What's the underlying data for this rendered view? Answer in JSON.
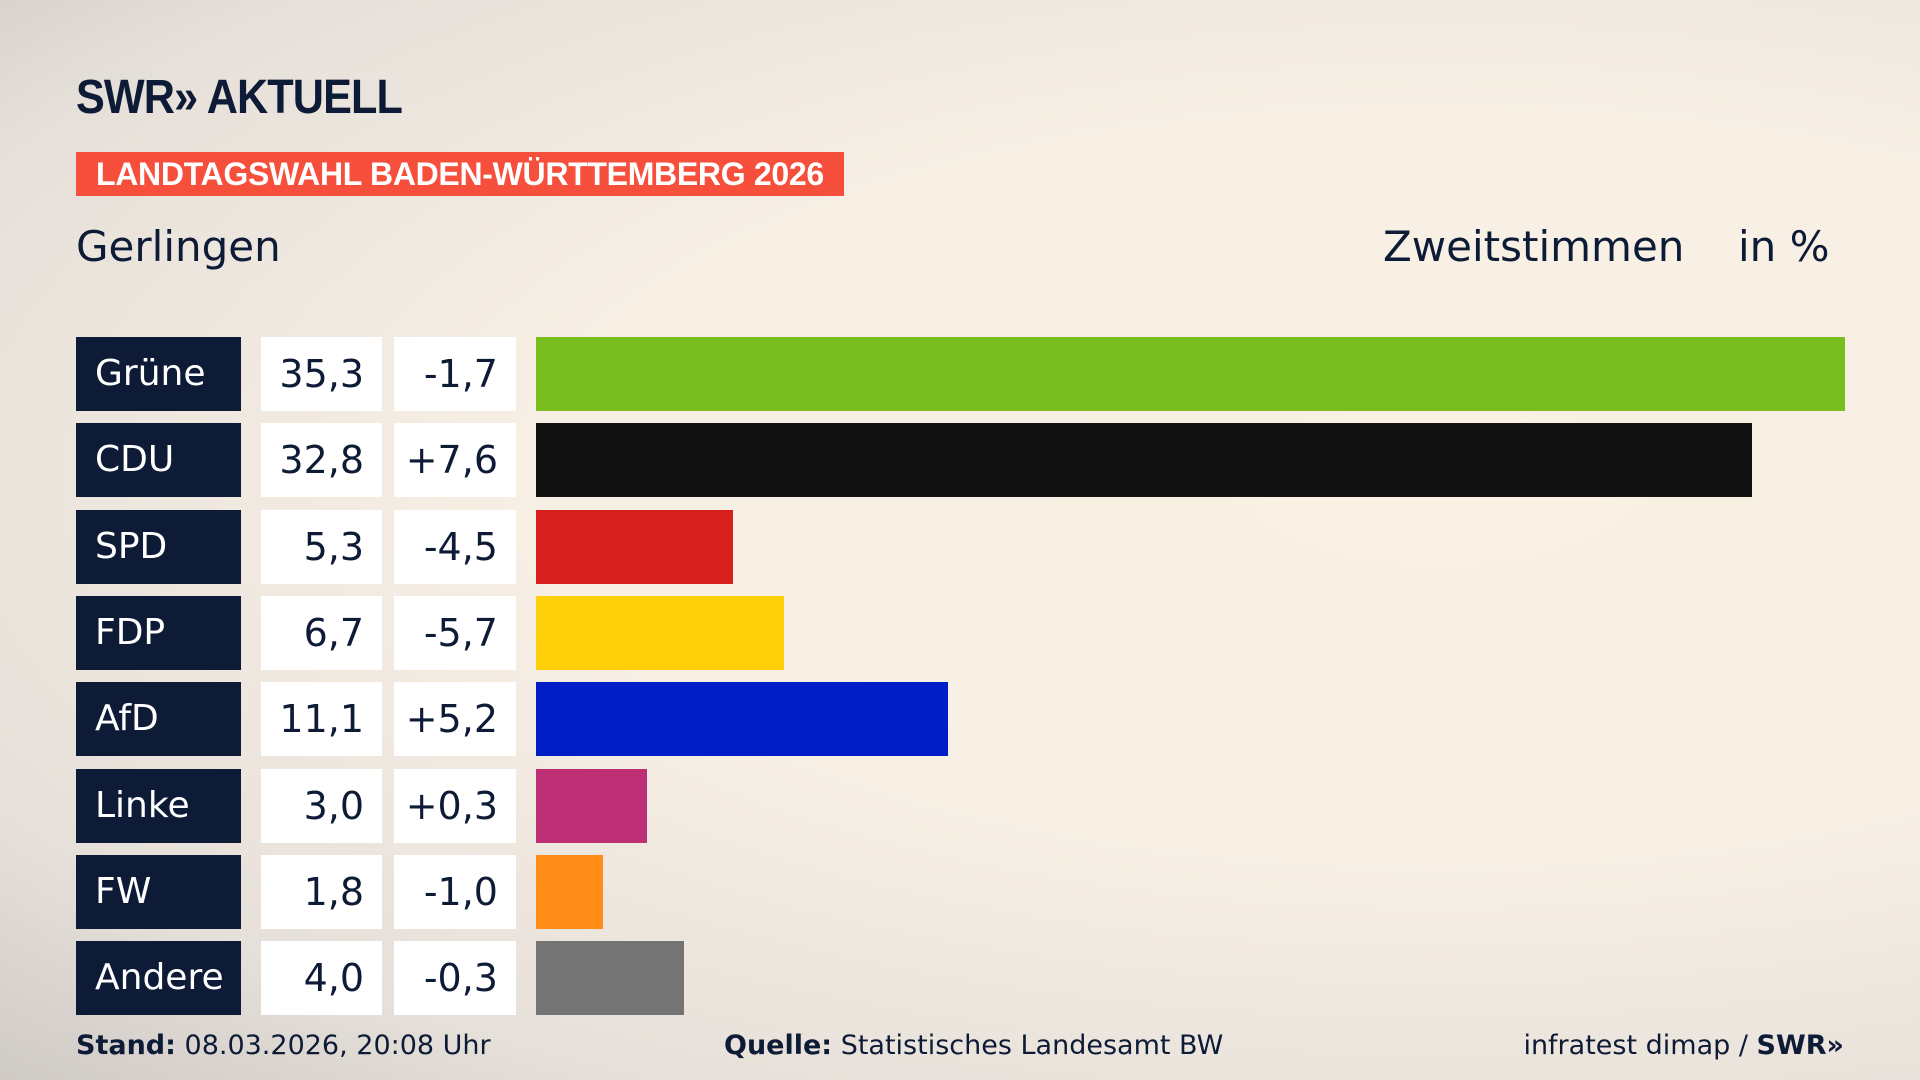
{
  "header": {
    "logo": "SWR» AKTUELL",
    "banner": "LANDTAGSWAHL BADEN-WÜRTTEMBERG 2026",
    "region": "Gerlingen",
    "measure": "Zweitstimmen",
    "unit": "in %"
  },
  "chart_data": {
    "type": "bar",
    "orientation": "horizontal",
    "categories": [
      "Grüne",
      "CDU",
      "SPD",
      "FDP",
      "AfD",
      "Linke",
      "FW",
      "Andere"
    ],
    "values": [
      35.3,
      32.8,
      5.3,
      6.7,
      11.1,
      3.0,
      1.8,
      4.0
    ],
    "value_labels": [
      "35,3",
      "32,8",
      "5,3",
      "6,7",
      "11,1",
      "3,0",
      "1,8",
      "4,0"
    ],
    "change_labels": [
      "-1,7",
      "+7,6",
      "-4,5",
      "-5,7",
      "+5,2",
      "+0,3",
      "-1,0",
      "-0,3"
    ],
    "colors": [
      "#7abd1f",
      "#121212",
      "#d71f1d",
      "#ffcf0a",
      "#001ec8",
      "#bd3075",
      "#ff8d17",
      "#747474"
    ],
    "xlim": [
      0,
      35.3
    ]
  },
  "footer": {
    "stand_label": "Stand:",
    "stand": "08.03.2026, 20:08 Uhr",
    "quelle_label": "Quelle:",
    "quelle": "Statistisches Landesamt BW",
    "credit": "infratest dimap / ",
    "credit_logo": "SWR»"
  }
}
